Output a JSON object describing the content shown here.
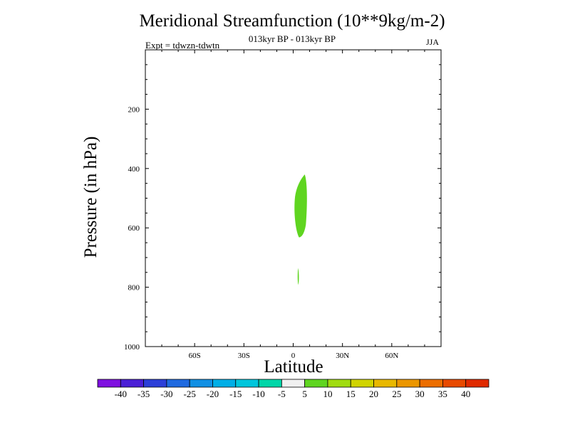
{
  "chart_data": {
    "type": "heatmap",
    "title": "Meridional Streamfunction (10**9kg/m-2)",
    "subtitle": "013kyr BP - 013kyr BP",
    "experiment": "Expt = tdwzn-tdwtn",
    "season": "JJA",
    "xlabel": "Latitude",
    "ylabel": "Pressure (in hPa)",
    "x_ticks": [
      {
        "value": -60,
        "label": "60S"
      },
      {
        "value": -30,
        "label": "30S"
      },
      {
        "value": 0,
        "label": "0"
      },
      {
        "value": 30,
        "label": "30N"
      },
      {
        "value": 60,
        "label": "60N"
      }
    ],
    "y_ticks": [
      200,
      400,
      600,
      800,
      1000
    ],
    "xlim": [
      -90,
      90
    ],
    "ylim": [
      1000,
      0
    ],
    "contour_levels": [
      -40,
      -35,
      -30,
      -25,
      -20,
      -15,
      -10,
      -5,
      5,
      10,
      15,
      20,
      25,
      30,
      35,
      40
    ],
    "colors": [
      "#7f10e0",
      "#4b1fd6",
      "#2c3fd8",
      "#1f6ae0",
      "#1190e4",
      "#00aee6",
      "#00c6dc",
      "#00d6a8",
      "#f0f0f0",
      "#5fd520",
      "#a0dc10",
      "#d0d400",
      "#e8b800",
      "#eb9600",
      "#ec6e00",
      "#e84a00",
      "#e02a00"
    ],
    "regions": [
      {
        "level": "5 to 10",
        "latitude_range": [
          0.5,
          8.5
        ],
        "pressure_range": [
          420,
          632
        ]
      },
      {
        "level": "5 to 10",
        "latitude_range": [
          2.6,
          3.6
        ],
        "pressure_range": [
          735,
          792
        ]
      }
    ]
  }
}
